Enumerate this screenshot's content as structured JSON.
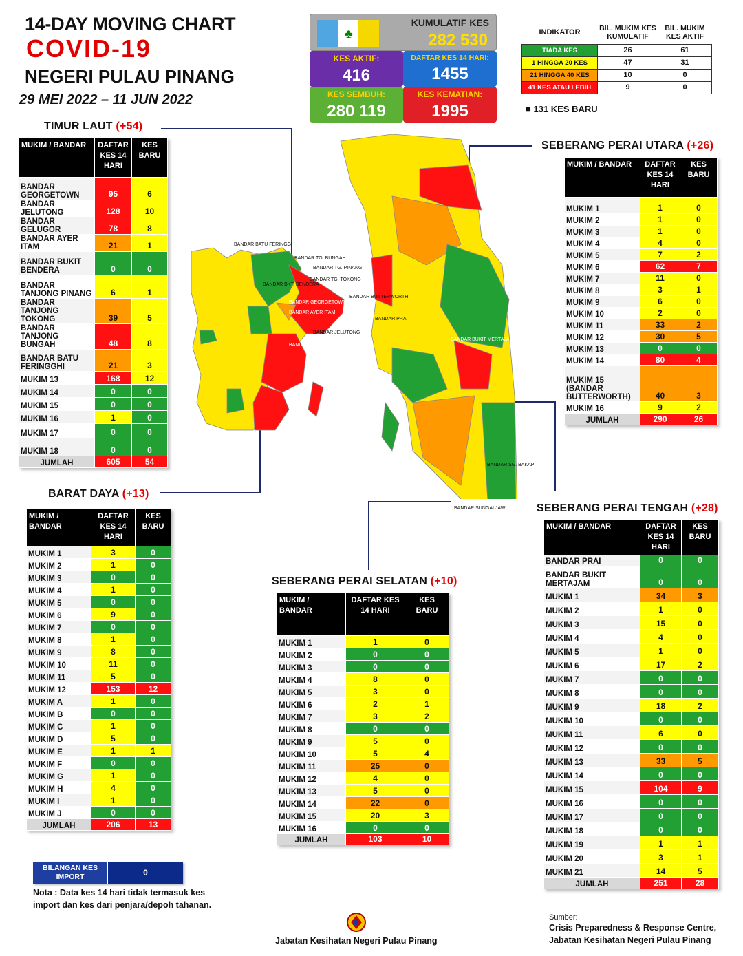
{
  "header": {
    "line1": "14-DAY MOVING CHART",
    "line2": "COVID-19",
    "line3": "NEGERI PULAU PINANG",
    "dates": "29 MEI 2022 – 11 JUN 2022"
  },
  "summary": {
    "kumulatif_label": "KUMULATIF KES",
    "kumulatif": "282 530",
    "aktif_label": "KES AKTIF:",
    "aktif": "416",
    "daftar14_label": "DAFTAR KES 14 HARI:",
    "daftar14": "1455",
    "sembuh_label": "KES SEMBUH:",
    "sembuh": "280 119",
    "kematian_label": "KES KEMATIAN:",
    "kematian": "1995"
  },
  "legend": {
    "h_indikator": "INDIKATOR",
    "h_kumulatif": "BIL. MUKIM KES KUMULATIF",
    "h_aktif": "BIL. MUKIM KES AKTIF",
    "rows": [
      {
        "label": "TIADA KES",
        "kum": "26",
        "akt": "61",
        "color": "#22a033"
      },
      {
        "label": "1 HINGGA 20 KES",
        "kum": "47",
        "akt": "31",
        "color": "#ffff00"
      },
      {
        "label": "21 HINGGA 40 KES",
        "kum": "10",
        "akt": "0",
        "color": "#ff9900"
      },
      {
        "label": "41 KES ATAU LEBIH",
        "kum": "9",
        "akt": "0",
        "color": "#ff1111"
      }
    ],
    "new_cases": "131 KES BARU"
  },
  "tables": {
    "timur_laut": {
      "title": "TIMUR LAUT",
      "plus": "(+54)",
      "h1": "MUKIM / BANDAR",
      "h2": "DAFTAR KES 14 HARI",
      "h3": "KES BARU",
      "rows": [
        [
          "BANDAR GEORGETOWN",
          "95",
          "6",
          "r",
          "y"
        ],
        [
          "BANDAR JELUTONG",
          "128",
          "10",
          "r",
          "y"
        ],
        [
          "BANDAR GELUGOR",
          "78",
          "8",
          "r",
          "y"
        ],
        [
          "BANDAR AYER ITAM",
          "21",
          "1",
          "o",
          "y"
        ],
        [
          "BANDAR BUKIT BENDERA",
          "0",
          "0",
          "g",
          "g"
        ],
        [
          "BANDAR TANJONG PINANG",
          "6",
          "1",
          "y",
          "y"
        ],
        [
          "BANDAR TANJONG TOKONG",
          "39",
          "5",
          "o",
          "y"
        ],
        [
          "BANDAR TANJONG BUNGAH",
          "48",
          "8",
          "r",
          "y"
        ],
        [
          "BANDAR BATU FERINGGHI",
          "21",
          "3",
          "o",
          "y"
        ],
        [
          "MUKIM 13",
          "168",
          "12",
          "r",
          "y"
        ],
        [
          "MUKIM 14",
          "0",
          "0",
          "g",
          "g"
        ],
        [
          "MUKIM 15",
          "0",
          "0",
          "g",
          "g"
        ],
        [
          "MUKIM 16",
          "1",
          "0",
          "y",
          "g"
        ],
        [
          "MUKIM 17",
          "0",
          "0",
          "g",
          "g"
        ],
        [
          "MUKIM 18",
          "0",
          "0",
          "g",
          "g"
        ]
      ],
      "total": [
        "JUMLAH",
        "605",
        "54"
      ]
    },
    "barat_daya": {
      "title": "BARAT DAYA",
      "plus": "(+13)",
      "h1": "MUKIM / BANDAR",
      "h2": "DAFTAR KES 14 HARI",
      "h3": "KES BARU",
      "rows": [
        [
          "MUKIM 1",
          "3",
          "0",
          "y",
          "g"
        ],
        [
          "MUKIM 2",
          "1",
          "0",
          "y",
          "g"
        ],
        [
          "MUKIM 3",
          "0",
          "0",
          "g",
          "g"
        ],
        [
          "MUKIM 4",
          "1",
          "0",
          "y",
          "g"
        ],
        [
          "MUKIM 5",
          "0",
          "0",
          "g",
          "g"
        ],
        [
          "MUKIM 6",
          "9",
          "0",
          "y",
          "g"
        ],
        [
          "MUKIM 7",
          "0",
          "0",
          "g",
          "g"
        ],
        [
          "MUKIM 8",
          "1",
          "0",
          "y",
          "g"
        ],
        [
          "MUKIM 9",
          "8",
          "0",
          "y",
          "g"
        ],
        [
          "MUKIM 10",
          "11",
          "0",
          "y",
          "g"
        ],
        [
          "MUKIM 11",
          "5",
          "0",
          "y",
          "g"
        ],
        [
          "MUKIM 12",
          "153",
          "12",
          "r",
          "r"
        ],
        [
          "MUKIM A",
          "1",
          "0",
          "y",
          "g"
        ],
        [
          "MUKIM B",
          "0",
          "0",
          "g",
          "g"
        ],
        [
          "MUKIM C",
          "1",
          "0",
          "y",
          "g"
        ],
        [
          "MUKIM D",
          "5",
          "0",
          "y",
          "g"
        ],
        [
          "MUKIM E",
          "1",
          "1",
          "y",
          "y"
        ],
        [
          "MUKIM F",
          "0",
          "0",
          "g",
          "g"
        ],
        [
          "MUKIM G",
          "1",
          "0",
          "y",
          "g"
        ],
        [
          "MUKIM H",
          "4",
          "0",
          "y",
          "g"
        ],
        [
          "MUKIM I",
          "1",
          "0",
          "y",
          "g"
        ],
        [
          "MUKIM J",
          "0",
          "0",
          "g",
          "g"
        ]
      ],
      "total": [
        "JUMLAH",
        "206",
        "13"
      ]
    },
    "spu": {
      "title": "SEBERANG PERAI UTARA",
      "plus": "(+26)",
      "h1": "MUKIM / BANDAR",
      "h2": "DAFTAR KES 14 HARI",
      "h3": "KES BARU",
      "rows": [
        [
          "MUKIM 1",
          "1",
          "0",
          "y",
          "y"
        ],
        [
          "MUKIM 2",
          "1",
          "0",
          "y",
          "y"
        ],
        [
          "MUKIM 3",
          "1",
          "0",
          "y",
          "y"
        ],
        [
          "MUKIM 4",
          "4",
          "0",
          "y",
          "y"
        ],
        [
          "MUKIM 5",
          "7",
          "2",
          "y",
          "y"
        ],
        [
          "MUKIM 6",
          "62",
          "7",
          "r",
          "r"
        ],
        [
          "MUKIM 7",
          "11",
          "0",
          "y",
          "y"
        ],
        [
          "MUKIM 8",
          "3",
          "1",
          "y",
          "y"
        ],
        [
          "MUKIM 9",
          "6",
          "0",
          "y",
          "y"
        ],
        [
          "MUKIM 10",
          "2",
          "0",
          "y",
          "y"
        ],
        [
          "MUKIM 11",
          "33",
          "2",
          "o",
          "o"
        ],
        [
          "MUKIM 12",
          "30",
          "5",
          "o",
          "o"
        ],
        [
          "MUKIM 13",
          "0",
          "0",
          "g",
          "g"
        ],
        [
          "MUKIM 14",
          "80",
          "4",
          "r",
          "r"
        ],
        [
          "MUKIM 15 (BANDAR BUTTERWORTH)",
          "40",
          "3",
          "o",
          "o"
        ],
        [
          "MUKIM 16",
          "9",
          "2",
          "y",
          "y"
        ]
      ],
      "total": [
        "JUMLAH",
        "290",
        "26"
      ]
    },
    "spt": {
      "title": "SEBERANG PERAI TENGAH",
      "plus": "(+28)",
      "h1": "MUKIM / BANDAR",
      "h2": "DAFTAR KES 14 HARI",
      "h3": "KES BARU",
      "rows": [
        [
          "BANDAR PRAI",
          "0",
          "0",
          "g",
          "g"
        ],
        [
          "BANDAR BUKIT MERTAJAM",
          "0",
          "0",
          "g",
          "g"
        ],
        [
          "MUKIM 1",
          "34",
          "3",
          "o",
          "o"
        ],
        [
          "MUKIM 2",
          "1",
          "0",
          "y",
          "y"
        ],
        [
          "MUKIM 3",
          "15",
          "0",
          "y",
          "y"
        ],
        [
          "MUKIM 4",
          "4",
          "0",
          "y",
          "y"
        ],
        [
          "MUKIM 5",
          "1",
          "0",
          "y",
          "y"
        ],
        [
          "MUKIM 6",
          "17",
          "2",
          "y",
          "y"
        ],
        [
          "MUKIM 7",
          "0",
          "0",
          "g",
          "g"
        ],
        [
          "MUKIM 8",
          "0",
          "0",
          "g",
          "g"
        ],
        [
          "MUKIM 9",
          "18",
          "2",
          "y",
          "y"
        ],
        [
          "MUKIM 10",
          "0",
          "0",
          "g",
          "g"
        ],
        [
          "MUKIM 11",
          "6",
          "0",
          "y",
          "y"
        ],
        [
          "MUKIM 12",
          "0",
          "0",
          "g",
          "g"
        ],
        [
          "MUKIM 13",
          "33",
          "5",
          "o",
          "o"
        ],
        [
          "MUKIM 14",
          "0",
          "0",
          "g",
          "g"
        ],
        [
          "MUKIM 15",
          "104",
          "9",
          "r",
          "r"
        ],
        [
          "MUKIM 16",
          "0",
          "0",
          "g",
          "g"
        ],
        [
          "MUKIM 17",
          "0",
          "0",
          "g",
          "g"
        ],
        [
          "MUKIM 18",
          "0",
          "0",
          "g",
          "g"
        ],
        [
          "MUKIM 19",
          "1",
          "1",
          "y",
          "y"
        ],
        [
          "MUKIM 20",
          "3",
          "1",
          "y",
          "y"
        ],
        [
          "MUKIM 21",
          "14",
          "5",
          "y",
          "y"
        ]
      ],
      "total": [
        "JUMLAH",
        "251",
        "28"
      ]
    },
    "sps": {
      "title": "SEBERANG PERAI SELATAN",
      "plus": "(+10)",
      "h1": "MUKIM / BANDAR",
      "h2": "DAFTAR KES 14 HARI",
      "h3": "KES BARU",
      "rows": [
        [
          "MUKIM 1",
          "1",
          "0",
          "y",
          "y"
        ],
        [
          "MUKIM 2",
          "0",
          "0",
          "g",
          "g"
        ],
        [
          "MUKIM 3",
          "0",
          "0",
          "g",
          "g"
        ],
        [
          "MUKIM 4",
          "8",
          "0",
          "y",
          "y"
        ],
        [
          "MUKIM 5",
          "3",
          "0",
          "y",
          "y"
        ],
        [
          "MUKIM 6",
          "2",
          "1",
          "y",
          "y"
        ],
        [
          "MUKIM 7",
          "3",
          "2",
          "y",
          "y"
        ],
        [
          "MUKIM 8",
          "0",
          "0",
          "g",
          "g"
        ],
        [
          "MUKIM 9",
          "5",
          "0",
          "y",
          "y"
        ],
        [
          "MUKIM 10",
          "5",
          "4",
          "y",
          "y"
        ],
        [
          "MUKIM 11",
          "25",
          "0",
          "o",
          "o"
        ],
        [
          "MUKIM 12",
          "4",
          "0",
          "y",
          "y"
        ],
        [
          "MUKIM 13",
          "5",
          "0",
          "y",
          "y"
        ],
        [
          "MUKIM 14",
          "22",
          "0",
          "o",
          "o"
        ],
        [
          "MUKIM 15",
          "20",
          "3",
          "y",
          "y"
        ],
        [
          "MUKIM 16",
          "0",
          "0",
          "g",
          "g"
        ]
      ],
      "total": [
        "JUMLAH",
        "103",
        "10"
      ]
    }
  },
  "import": {
    "label": "BILANGAN KES IMPORT",
    "value": "0"
  },
  "note": "Nota : Data kes 14 hari tidak termasuk kes import dan kes dari penjara/depoh tahanan.",
  "footer": {
    "dept": "Jabatan Kesihatan Negeri Pulau Pinang",
    "source_label": "Sumber:",
    "source1": "Crisis Preparedness & Response Centre,",
    "source2": "Jabatan Kesihatan Negeri Pulau Pinang"
  },
  "map_labels": [
    "BANDAR BATU FERINGGI",
    "BANDAR TG. BUNGAH",
    "BANDAR TG. PINANG",
    "BANDAR TG. TOKONG",
    "BANDAR BKT. BENDERA",
    "BANDAR GEORGETOWN",
    "BANDAR AYER ITAM",
    "BANDAR JELUTONG",
    "BANDAR GELUGOR",
    "BANDAR BUTTERWORTH",
    "BANDAR PRAI",
    "BANDAR BUKIT MERTAJAM",
    "BANDAR SG. BAKAP",
    "BANDAR SUNGAI JAWI"
  ]
}
